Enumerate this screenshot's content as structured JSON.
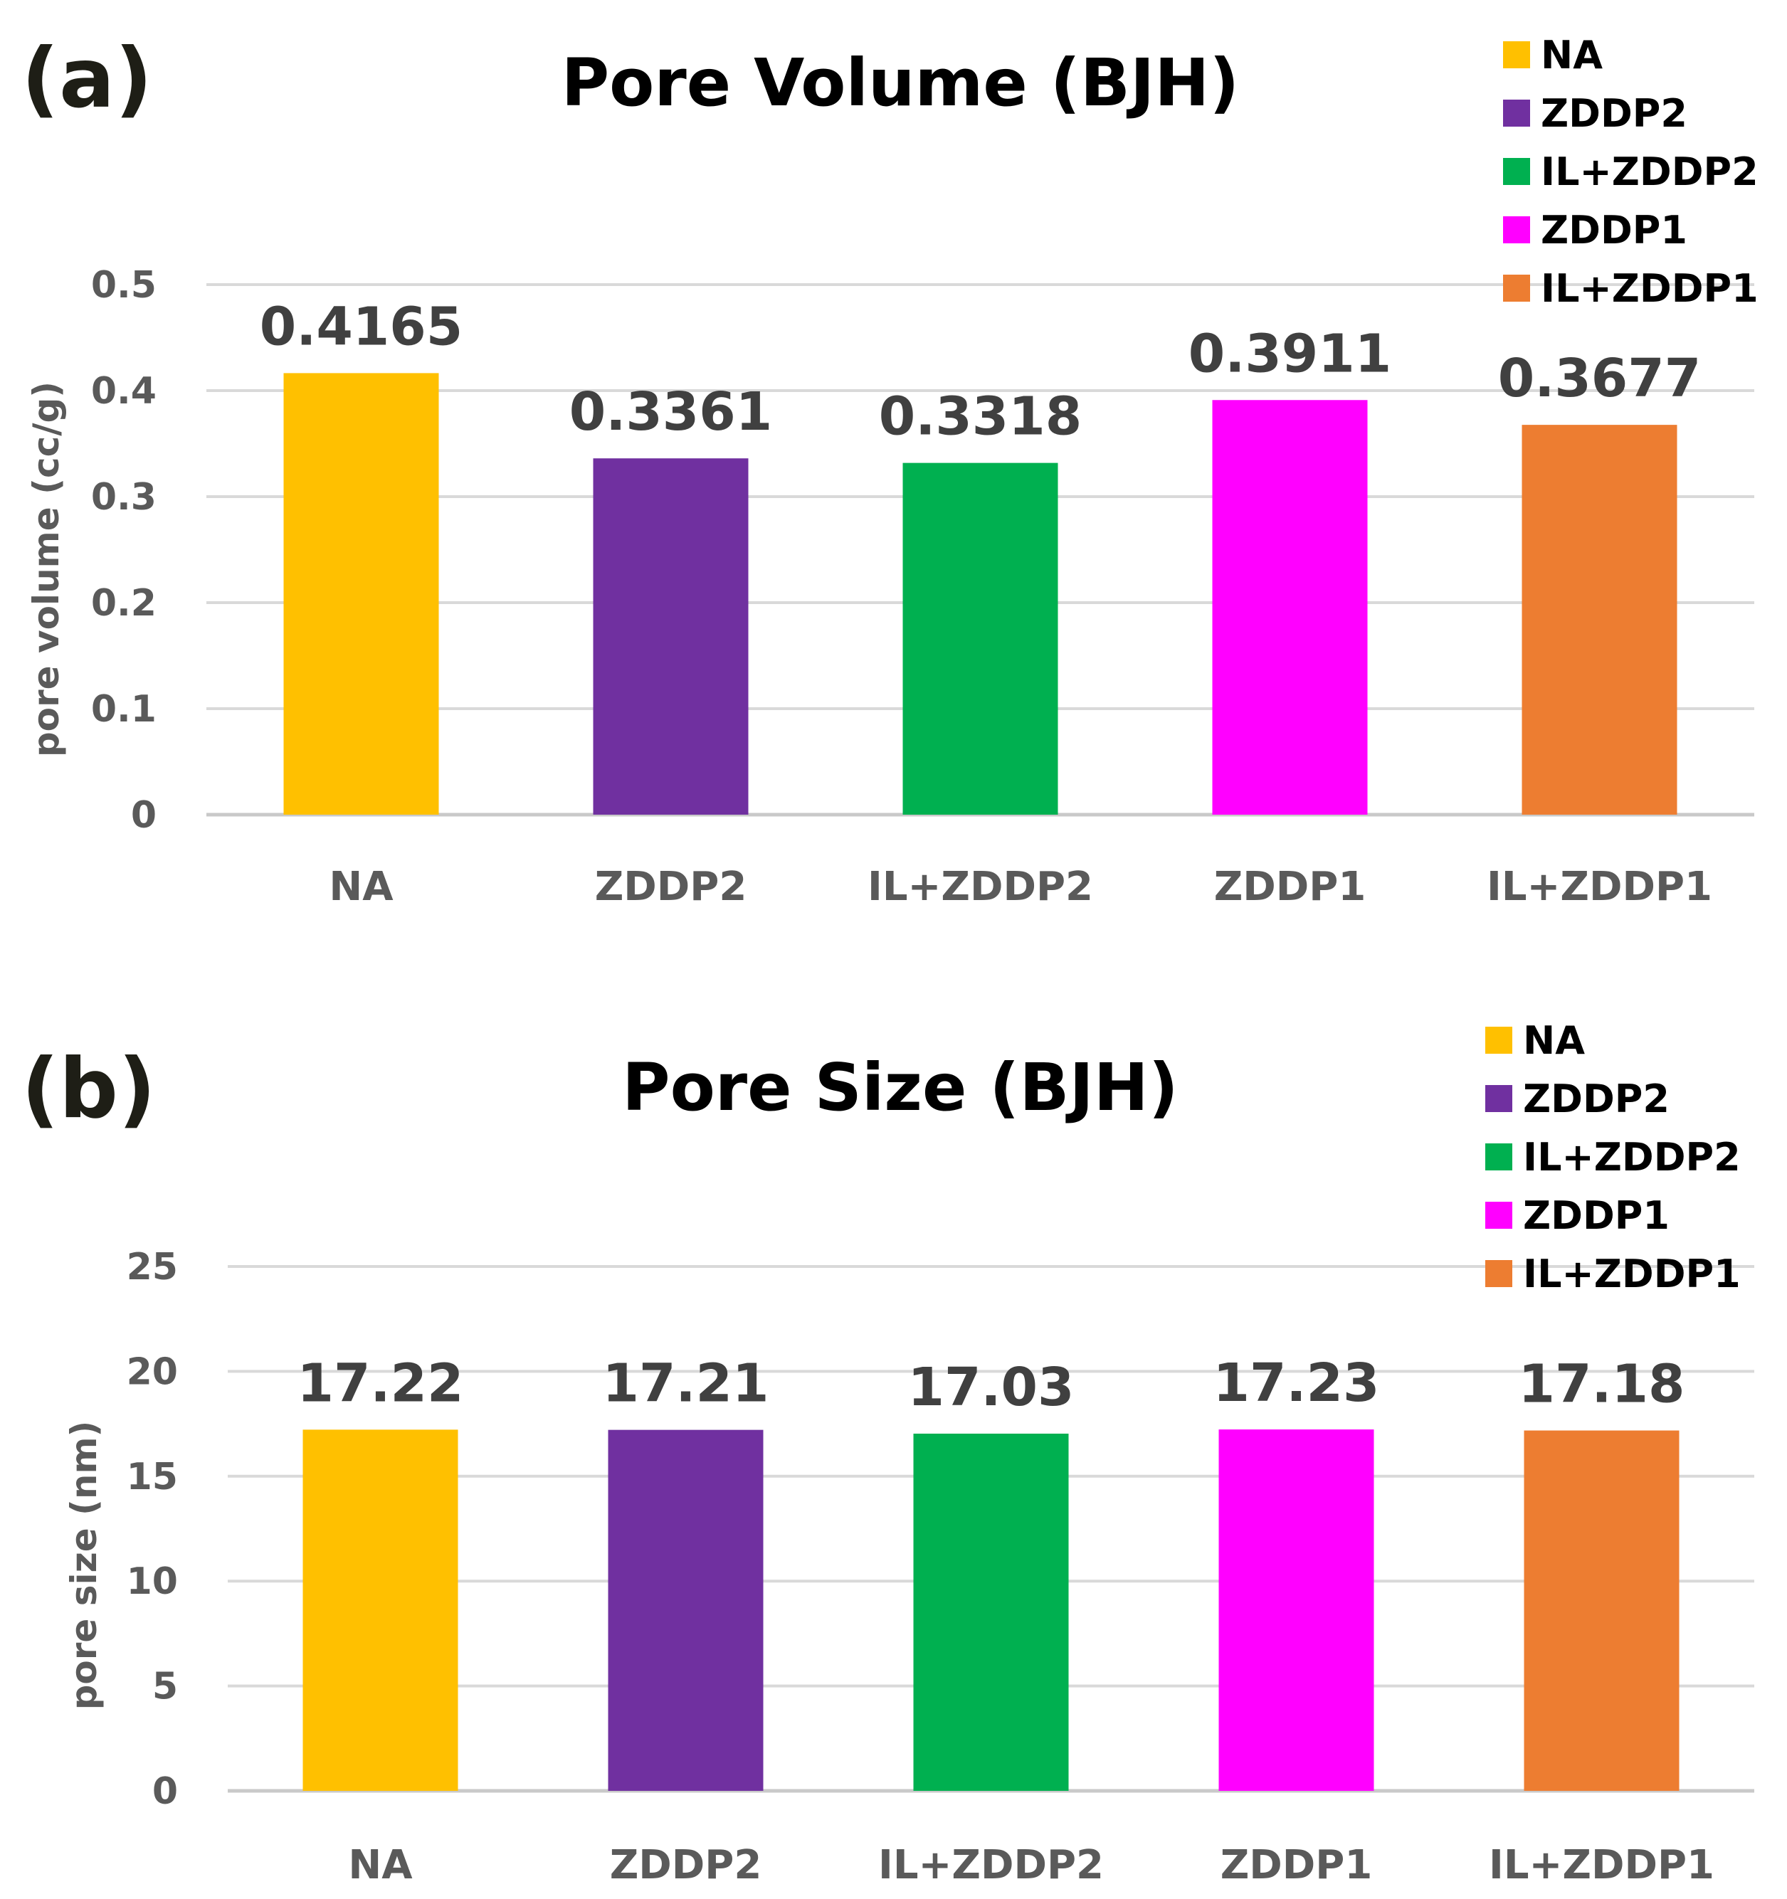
{
  "chart_data": [
    {
      "panel": "(a)",
      "type": "bar",
      "title": "Pore Volume (BJH)",
      "xlabel": "",
      "ylabel": "pore  volume (cc/g)",
      "categories": [
        "NA",
        "ZDDP2",
        "IL+ZDDP2",
        "ZDDP1",
        "IL+ZDDP1"
      ],
      "values": [
        0.4165,
        0.3361,
        0.3318,
        0.3911,
        0.3677
      ],
      "value_labels": [
        "0.4165",
        "0.3361",
        "0.3318",
        "0.3911",
        "0.3677"
      ],
      "ylim": [
        0,
        0.5
      ],
      "yticks": [
        0,
        0.1,
        0.2,
        0.3,
        0.4,
        0.5
      ],
      "ytick_labels": [
        "0",
        "0.1",
        "0.2",
        "0.3",
        "0.4",
        "0.5"
      ],
      "colors": [
        "#ffc000",
        "#7030a0",
        "#00b050",
        "#ff00ff",
        "#ed7d31"
      ],
      "legend": [
        "NA",
        "ZDDP2",
        "IL+ZDDP2",
        "ZDDP1",
        "IL+ZDDP1"
      ],
      "legend_position": "top-right",
      "grid": true
    },
    {
      "panel": "(b)",
      "type": "bar",
      "title": "Pore Size (BJH)",
      "xlabel": "",
      "ylabel": "pore size  (nm)",
      "categories": [
        "NA",
        "ZDDP2",
        "IL+ZDDP2",
        "ZDDP1",
        "IL+ZDDP1"
      ],
      "values": [
        17.22,
        17.21,
        17.03,
        17.23,
        17.18
      ],
      "value_labels": [
        "17.22",
        "17.21",
        "17.03",
        "17.23",
        "17.18"
      ],
      "ylim": [
        0,
        25
      ],
      "yticks": [
        0,
        5,
        10,
        15,
        20,
        25
      ],
      "ytick_labels": [
        "0",
        "5",
        "10",
        "15",
        "20",
        "25"
      ],
      "colors": [
        "#ffc000",
        "#7030a0",
        "#00b050",
        "#ff00ff",
        "#ed7d31"
      ],
      "legend": [
        "NA",
        "ZDDP2",
        "IL+ZDDP2",
        "ZDDP1",
        "IL+ZDDP1"
      ],
      "legend_position": "top-right",
      "grid": true
    }
  ]
}
